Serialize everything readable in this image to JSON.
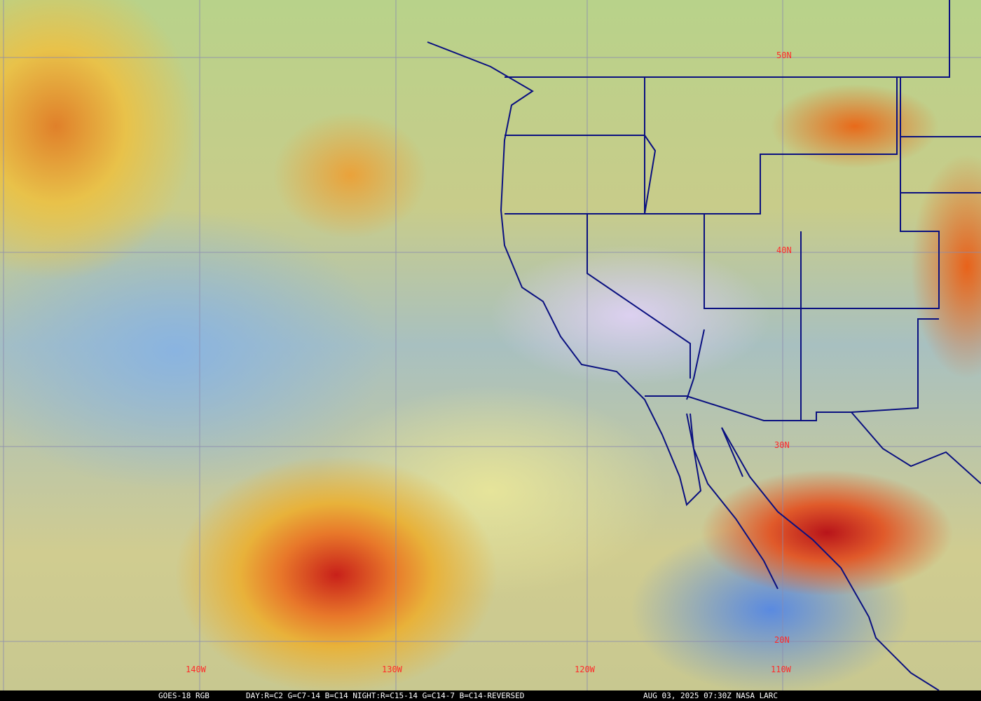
{
  "map": {
    "longitude_labels": [
      "140W",
      "130W",
      "120W",
      "110W"
    ],
    "latitude_labels": [
      "20N",
      "30N",
      "40N",
      "50N"
    ],
    "label_color": "#ff2a2a",
    "boundary_color": "#0a1080",
    "grid_color": "#8a8ab0"
  },
  "caption": {
    "product": "GOES-18 RGB",
    "channels": "DAY:R=C2 G=C7-14 B=C14 NIGHT:R=C15-14 G=C14-7 B=C14-REVERSED",
    "timestamp": "AUG 03, 2025 07:30Z NASA LARC"
  }
}
